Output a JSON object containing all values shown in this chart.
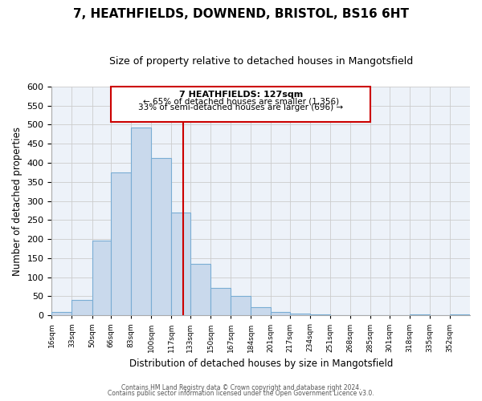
{
  "title": "7, HEATHFIELDS, DOWNEND, BRISTOL, BS16 6HT",
  "subtitle": "Size of property relative to detached houses in Mangotsfield",
  "xlabel": "Distribution of detached houses by size in Mangotsfield",
  "ylabel": "Number of detached properties",
  "bin_labels": [
    "16sqm",
    "33sqm",
    "50sqm",
    "66sqm",
    "83sqm",
    "100sqm",
    "117sqm",
    "133sqm",
    "150sqm",
    "167sqm",
    "184sqm",
    "201sqm",
    "217sqm",
    "234sqm",
    "251sqm",
    "268sqm",
    "285sqm",
    "301sqm",
    "318sqm",
    "335sqm",
    "352sqm"
  ],
  "bar_heights": [
    8,
    40,
    195,
    375,
    492,
    413,
    270,
    135,
    73,
    50,
    22,
    10,
    5,
    2,
    1,
    1,
    0,
    0,
    2,
    0,
    2
  ],
  "bar_color": "#c9d9ec",
  "bar_edge_color": "#7aadd4",
  "reference_line_x": 127,
  "bin_edges": [
    16,
    33,
    50,
    66,
    83,
    100,
    117,
    133,
    150,
    167,
    184,
    201,
    217,
    234,
    251,
    268,
    285,
    301,
    318,
    335,
    352,
    369
  ],
  "annotation_title": "7 HEATHFIELDS: 127sqm",
  "annotation_line1": "← 65% of detached houses are smaller (1,356)",
  "annotation_line2": "33% of semi-detached houses are larger (696) →",
  "annotation_box_color": "#ffffff",
  "annotation_box_edge": "#cc0000",
  "vline_color": "#cc0000",
  "ylim": [
    0,
    600
  ],
  "yticks": [
    0,
    50,
    100,
    150,
    200,
    250,
    300,
    350,
    400,
    450,
    500,
    550,
    600
  ],
  "grid_color": "#cccccc",
  "bg_color": "#edf2f9",
  "footer1": "Contains HM Land Registry data © Crown copyright and database right 2024.",
  "footer2": "Contains public sector information licensed under the Open Government Licence v3.0.",
  "title_fontsize": 11,
  "subtitle_fontsize": 9,
  "xlabel_fontsize": 8.5,
  "ylabel_fontsize": 8.5
}
